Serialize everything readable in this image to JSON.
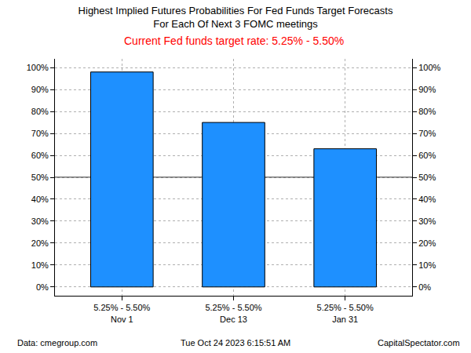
{
  "chart_data": {
    "type": "bar",
    "title": "Highest Implied Futures Probabilities For Fed Funds Target Forecasts\nFor Each Of Next 3 FOMC meetings",
    "subtitle": "Current Fed funds target rate: 5.25% - 5.50%",
    "categories": [
      "5.25% - 5.50%\nNov 1",
      "5.25% - 5.50%\nDec 13",
      "5.25% - 5.50%\nJan 31"
    ],
    "values": [
      98,
      75,
      63
    ],
    "color": "#1e90ff",
    "ylim": [
      -4,
      104
    ],
    "yticks": [
      {
        "value": 0,
        "label": "0%"
      },
      {
        "value": 10,
        "label": "10%"
      },
      {
        "value": 20,
        "label": "20%"
      },
      {
        "value": 30,
        "label": "30%"
      },
      {
        "value": 40,
        "label": "40%"
      },
      {
        "value": 50,
        "label": "50%"
      },
      {
        "value": 60,
        "label": "60%"
      },
      {
        "value": 70,
        "label": "70%"
      },
      {
        "value": 80,
        "label": "80%"
      },
      {
        "value": 90,
        "label": "90%"
      },
      {
        "value": 100,
        "label": "100%"
      }
    ],
    "y2lim": [
      -4,
      104
    ],
    "y2ticks": [
      {
        "value": 0,
        "label": "0%"
      },
      {
        "value": 10,
        "label": "10%"
      },
      {
        "value": 20,
        "label": "20%"
      },
      {
        "value": 30,
        "label": "30%"
      },
      {
        "value": 40,
        "label": "40%"
      },
      {
        "value": 50,
        "label": "50%"
      },
      {
        "value": 60,
        "label": "60%"
      },
      {
        "value": 70,
        "label": "70%"
      },
      {
        "value": 80,
        "label": "80%"
      },
      {
        "value": 90,
        "label": "90%"
      },
      {
        "value": 100,
        "label": "100%"
      }
    ],
    "reference_line": 50,
    "grid": true,
    "source": "Data: cmegroup.com",
    "timestamp": "Tue Oct 24 2023 6:15:51 AM",
    "credit": "CapitalSpectator.com"
  }
}
